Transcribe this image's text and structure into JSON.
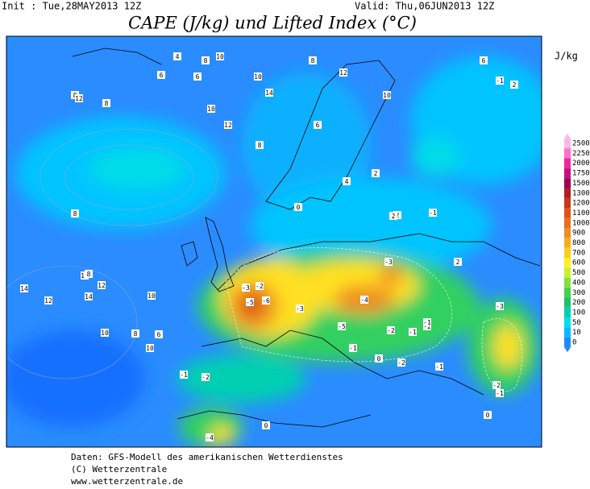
{
  "header": {
    "init": "Init : Tue,28MAY2013 12Z",
    "valid": "Valid: Thu,06JUN2013 12Z",
    "title": "CAPE (J/kg) und Lifted Index (°C)"
  },
  "legend": {
    "unit": "J/kg",
    "levels": [
      {
        "value": 2500,
        "color": "#ffb8e6"
      },
      {
        "value": 2250,
        "color": "#ff70c8"
      },
      {
        "value": 2000,
        "color": "#e8289e"
      },
      {
        "value": 1750,
        "color": "#c8107c"
      },
      {
        "value": 1500,
        "color": "#a00050"
      },
      {
        "value": 1300,
        "color": "#b41c24"
      },
      {
        "value": 1200,
        "color": "#c83818"
      },
      {
        "value": 1100,
        "color": "#d85418"
      },
      {
        "value": 1000,
        "color": "#e87020"
      },
      {
        "value": 900,
        "color": "#f08c20"
      },
      {
        "value": 800,
        "color": "#f8ac20"
      },
      {
        "value": 700,
        "color": "#ffcc20"
      },
      {
        "value": 600,
        "color": "#fff020"
      },
      {
        "value": 500,
        "color": "#c8f030"
      },
      {
        "value": 400,
        "color": "#88e040"
      },
      {
        "value": 300,
        "color": "#48d048"
      },
      {
        "value": 200,
        "color": "#20c070"
      },
      {
        "value": 100,
        "color": "#00d0b0"
      },
      {
        "value": 50,
        "color": "#00e0e8"
      },
      {
        "value": 10,
        "color": "#00bcff"
      },
      {
        "value": 0,
        "color": "#2088ff"
      }
    ]
  },
  "map": {
    "contour_labels": [
      8,
      8,
      6,
      4,
      10,
      12,
      10,
      8,
      6,
      8,
      10,
      14,
      12,
      10,
      8,
      6,
      10,
      12,
      14,
      10,
      8,
      12,
      14,
      10,
      8,
      6,
      4,
      12,
      10,
      8,
      6,
      2,
      2,
      2,
      0,
      2,
      -1,
      -1,
      2,
      -2,
      -3,
      -5,
      -6,
      -3,
      -4,
      -3,
      -5,
      -2,
      -1,
      -2,
      -1,
      -1,
      -2,
      -1,
      -3,
      -1,
      0,
      -1,
      -2,
      -4,
      -2,
      0,
      0
    ]
  },
  "footer": {
    "lines": [
      "Daten: GFS-Modell des amerikanischen Wetterdienstes",
      "(C) Wetterzentrale",
      "www.wetterzentrale.de"
    ]
  }
}
